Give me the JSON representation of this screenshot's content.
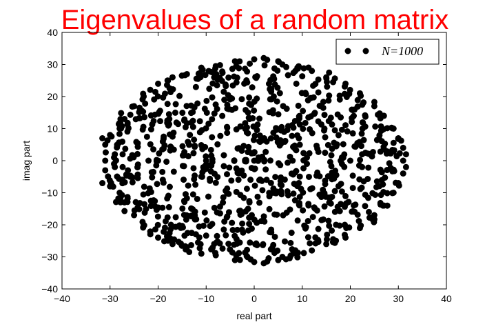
{
  "chart_data": {
    "type": "scatter",
    "title": "Eigenvalues of a random matrix",
    "title_color": "#ff0000",
    "xlabel": "real part",
    "ylabel": "imag part",
    "xlim": [
      -40,
      40
    ],
    "ylim": [
      -40,
      40
    ],
    "xticks": [
      -40,
      -30,
      -20,
      -10,
      0,
      10,
      20,
      30,
      40
    ],
    "yticks": [
      -40,
      -30,
      -20,
      -10,
      0,
      10,
      20,
      30,
      40
    ],
    "xtick_labels": [
      "−40",
      "−30",
      "−20",
      "−10",
      "0",
      "10",
      "20",
      "30",
      "40"
    ],
    "ytick_labels": [
      "−40",
      "−30",
      "−20",
      "−10",
      "0",
      "10",
      "20",
      "30",
      "40"
    ],
    "grid": false,
    "legend_position": "top-right",
    "marker_color": "#000000",
    "series": [
      {
        "name": "N=1000",
        "label": "N=1000",
        "distribution": "approximately uniform over a disk of radius 31.6 centred at the origin, symmetric about the real axis",
        "radius": 31.6,
        "count": 1000,
        "points": [
          [
            -31.6,
            7
          ],
          [
            -31.6,
            -7
          ],
          [
            -31,
            5
          ],
          [
            -31,
            0
          ],
          [
            -31,
            -3
          ],
          [
            -30,
            8
          ],
          [
            -30,
            -8
          ],
          [
            -29,
            2
          ],
          [
            -29,
            -2
          ],
          [
            -28,
            10
          ],
          [
            -28,
            -10
          ],
          [
            -27,
            13
          ],
          [
            -27,
            -13
          ],
          [
            -25,
            17
          ],
          [
            -25,
            -17
          ],
          [
            -23,
            20
          ],
          [
            -23,
            -20
          ],
          [
            -20,
            24
          ],
          [
            -20,
            -24
          ],
          [
            -17,
            26
          ],
          [
            -17,
            -26
          ],
          [
            -14,
            27
          ],
          [
            -14,
            -27
          ],
          [
            -11,
            29
          ],
          [
            -11,
            -29
          ],
          [
            -8,
            29.5
          ],
          [
            -8,
            -29.5
          ],
          [
            -4,
            31
          ],
          [
            -4,
            -31
          ],
          [
            0,
            31.6
          ],
          [
            0,
            -31.6
          ],
          [
            2,
            32
          ],
          [
            2,
            -32
          ],
          [
            5,
            31
          ],
          [
            5,
            -31
          ],
          [
            9,
            29
          ],
          [
            9,
            -29
          ],
          [
            12,
            28
          ],
          [
            12,
            -28
          ],
          [
            15,
            26
          ],
          [
            15,
            -26
          ],
          [
            19,
            24
          ],
          [
            19,
            -24
          ],
          [
            22,
            21
          ],
          [
            22,
            -21
          ],
          [
            25,
            17
          ],
          [
            25,
            -17
          ],
          [
            27,
            14
          ],
          [
            27,
            -14
          ],
          [
            29,
            10
          ],
          [
            29,
            -10
          ],
          [
            30,
            7
          ],
          [
            30,
            -7
          ],
          [
            31,
            4
          ],
          [
            31,
            -4
          ],
          [
            31.6,
            2
          ],
          [
            31.6,
            -2
          ],
          [
            31,
            0
          ],
          [
            -20,
            0
          ],
          [
            -10,
            0
          ],
          [
            0,
            0
          ],
          [
            8,
            0
          ],
          [
            20,
            0
          ],
          [
            -22,
            0
          ],
          [
            18,
            0
          ]
        ]
      }
    ]
  }
}
